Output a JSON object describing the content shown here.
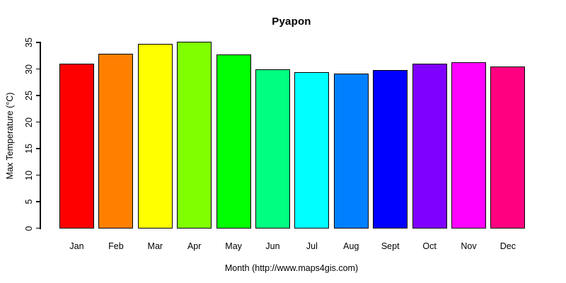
{
  "chart_data": {
    "type": "bar",
    "title": "Pyapon",
    "xlabel": "Month (http://www.maps4gis.com)",
    "ylabel": "Max Temperature (°C)",
    "categories": [
      "Jan",
      "Feb",
      "Mar",
      "Apr",
      "May",
      "Jun",
      "Jul",
      "Aug",
      "Sept",
      "Oct",
      "Nov",
      "Dec"
    ],
    "values": [
      31.0,
      32.9,
      34.7,
      35.2,
      32.7,
      30.0,
      29.4,
      29.2,
      29.8,
      31.0,
      31.3,
      30.5
    ],
    "bar_colors": [
      "#FF0000",
      "#FF8000",
      "#FFFF00",
      "#80FF00",
      "#00FF00",
      "#00FF80",
      "#00FFFF",
      "#0080FF",
      "#0000FF",
      "#8000FF",
      "#FF00FF",
      "#FF0080"
    ],
    "bar_border_color": "#000000",
    "ylim": [
      0,
      35
    ],
    "yticks": [
      0,
      5,
      10,
      15,
      20,
      25,
      30,
      35
    ],
    "grid": false,
    "legend": false
  }
}
